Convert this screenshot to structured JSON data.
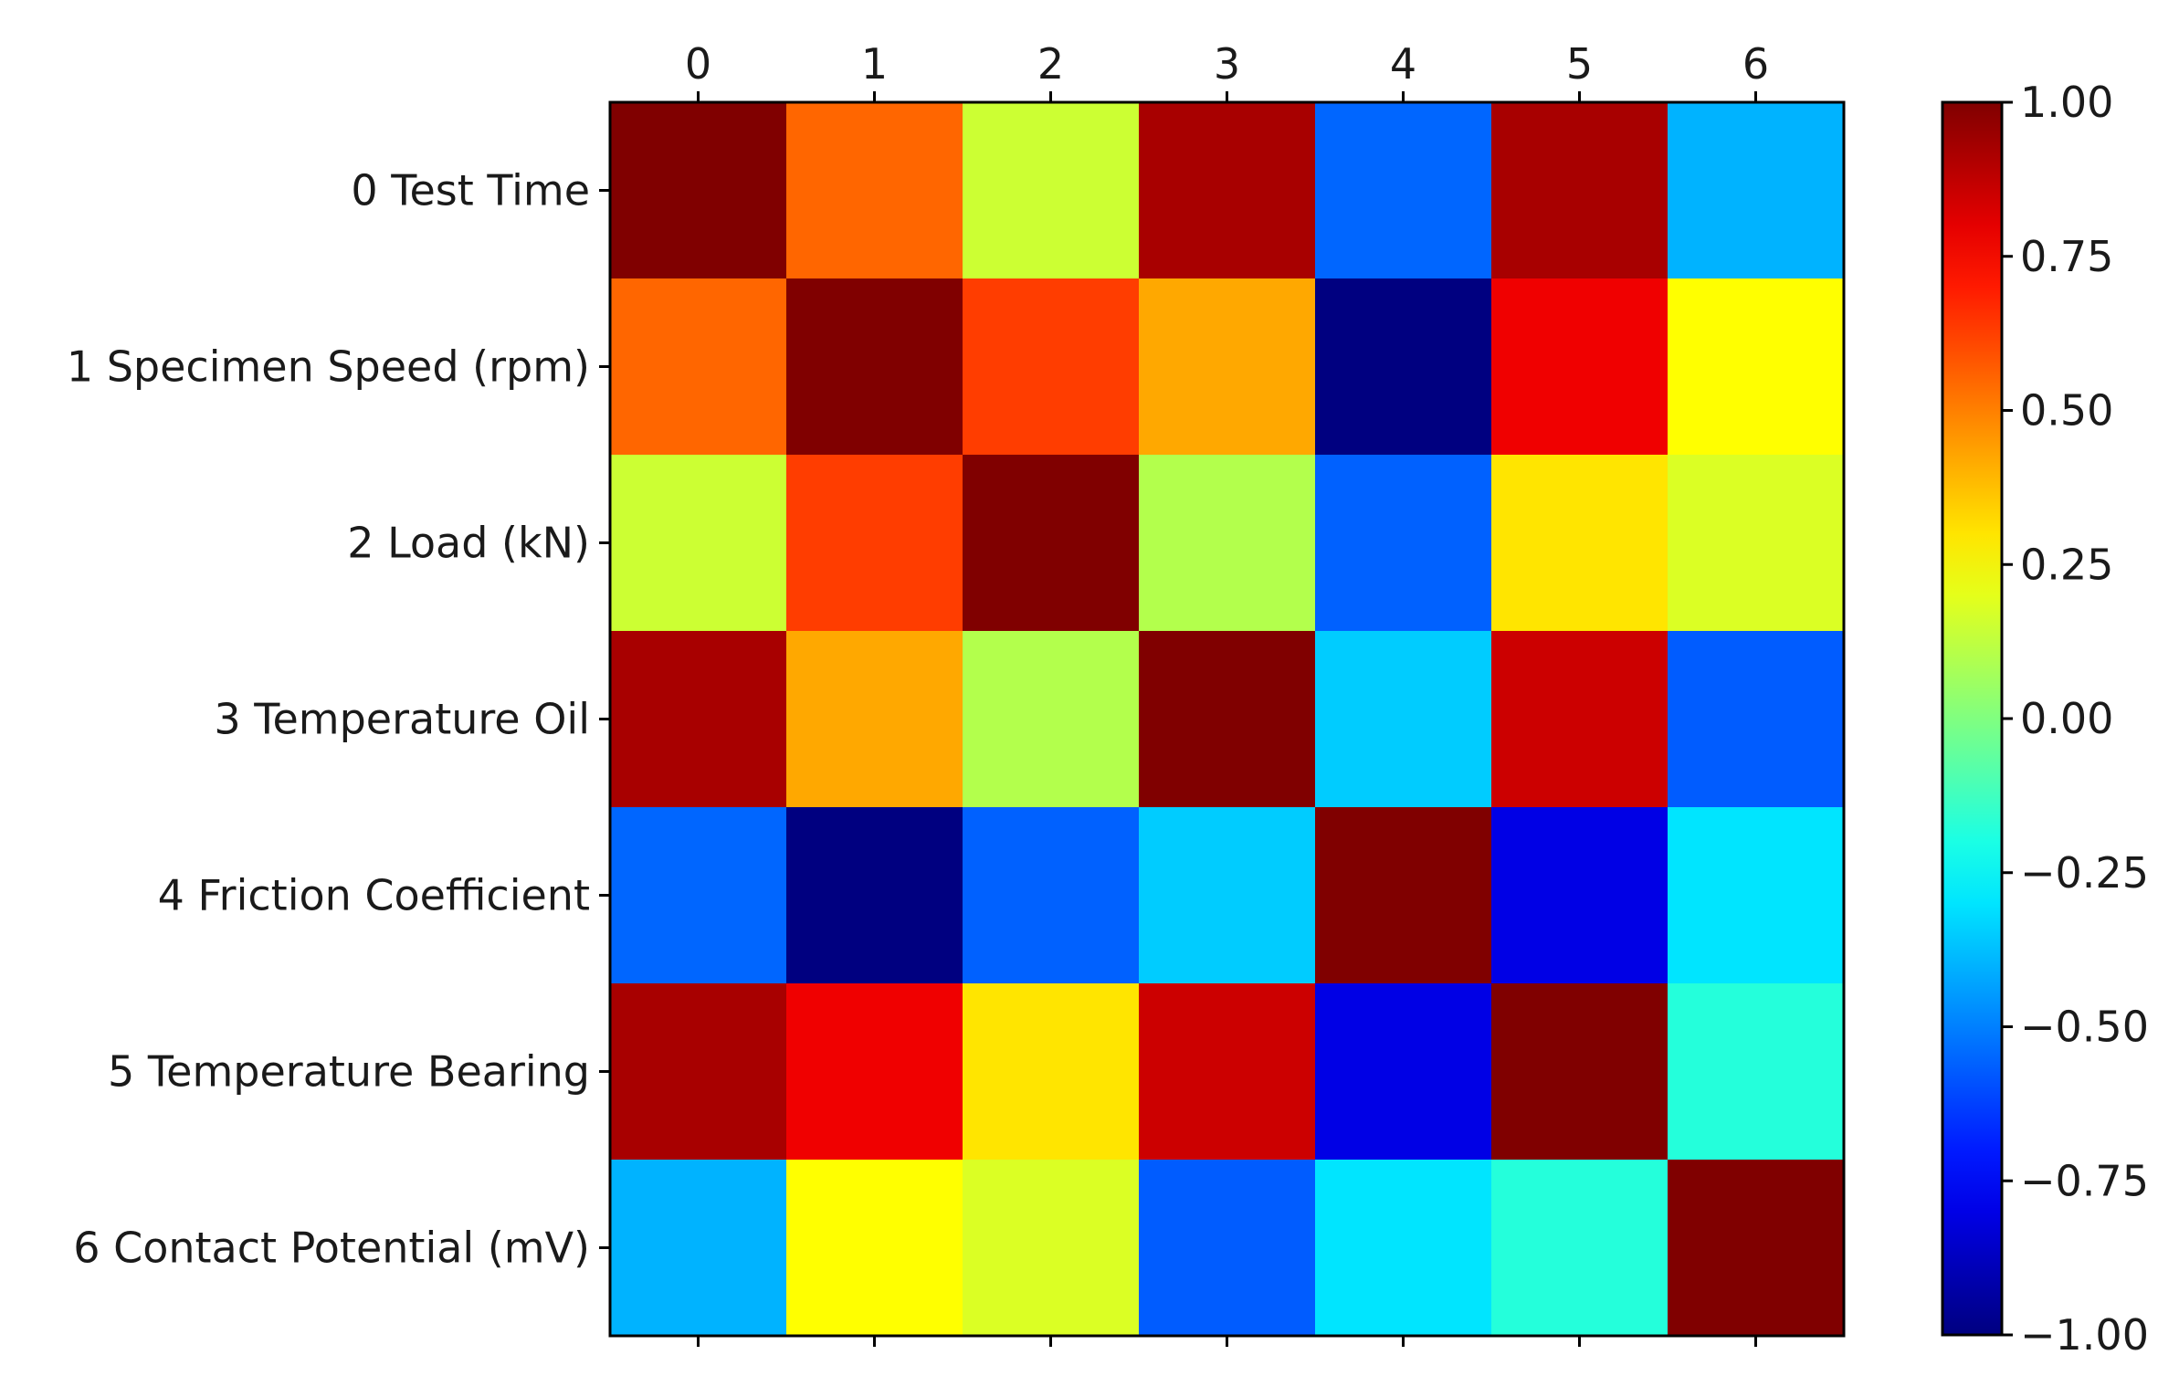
{
  "chart_data": {
    "type": "heatmap",
    "title": "",
    "xlabel": "",
    "ylabel": "",
    "x_tick_labels": [
      "0",
      "1",
      "2",
      "3",
      "4",
      "5",
      "6"
    ],
    "y_tick_labels": [
      "0 Test Time",
      "1 Specimen Speed (rpm)",
      "2 Load (kN)",
      "3 Temperature Oil",
      "4 Friction Coefficient",
      "5 Temperature Bearing",
      "6 Contact Potential (mV)"
    ],
    "values": [
      [
        1.0,
        0.55,
        0.15,
        0.92,
        -0.55,
        0.92,
        -0.4
      ],
      [
        0.55,
        1.0,
        0.63,
        0.42,
        -1.0,
        0.78,
        0.25
      ],
      [
        0.15,
        0.63,
        1.0,
        0.1,
        -0.56,
        0.3,
        0.18
      ],
      [
        0.92,
        0.42,
        0.1,
        1.0,
        -0.35,
        0.85,
        -0.57
      ],
      [
        -0.55,
        -1.0,
        -0.56,
        -0.35,
        1.0,
        -0.8,
        -0.3
      ],
      [
        0.92,
        0.78,
        0.3,
        0.85,
        -0.8,
        1.0,
        -0.18
      ],
      [
        -0.4,
        0.25,
        0.18,
        -0.57,
        -0.3,
        -0.18,
        1.0
      ]
    ],
    "colormap": "jet",
    "colorbar": {
      "min": -1.0,
      "max": 1.0,
      "ticks": [
        1.0,
        0.75,
        0.5,
        0.25,
        0.0,
        -0.25,
        -0.5,
        -0.75,
        -1.0
      ],
      "tick_labels": [
        "1.00",
        "0.75",
        "0.50",
        "0.25",
        "0.00",
        "−0.25",
        "−0.50",
        "−0.75",
        "−1.00"
      ]
    }
  }
}
